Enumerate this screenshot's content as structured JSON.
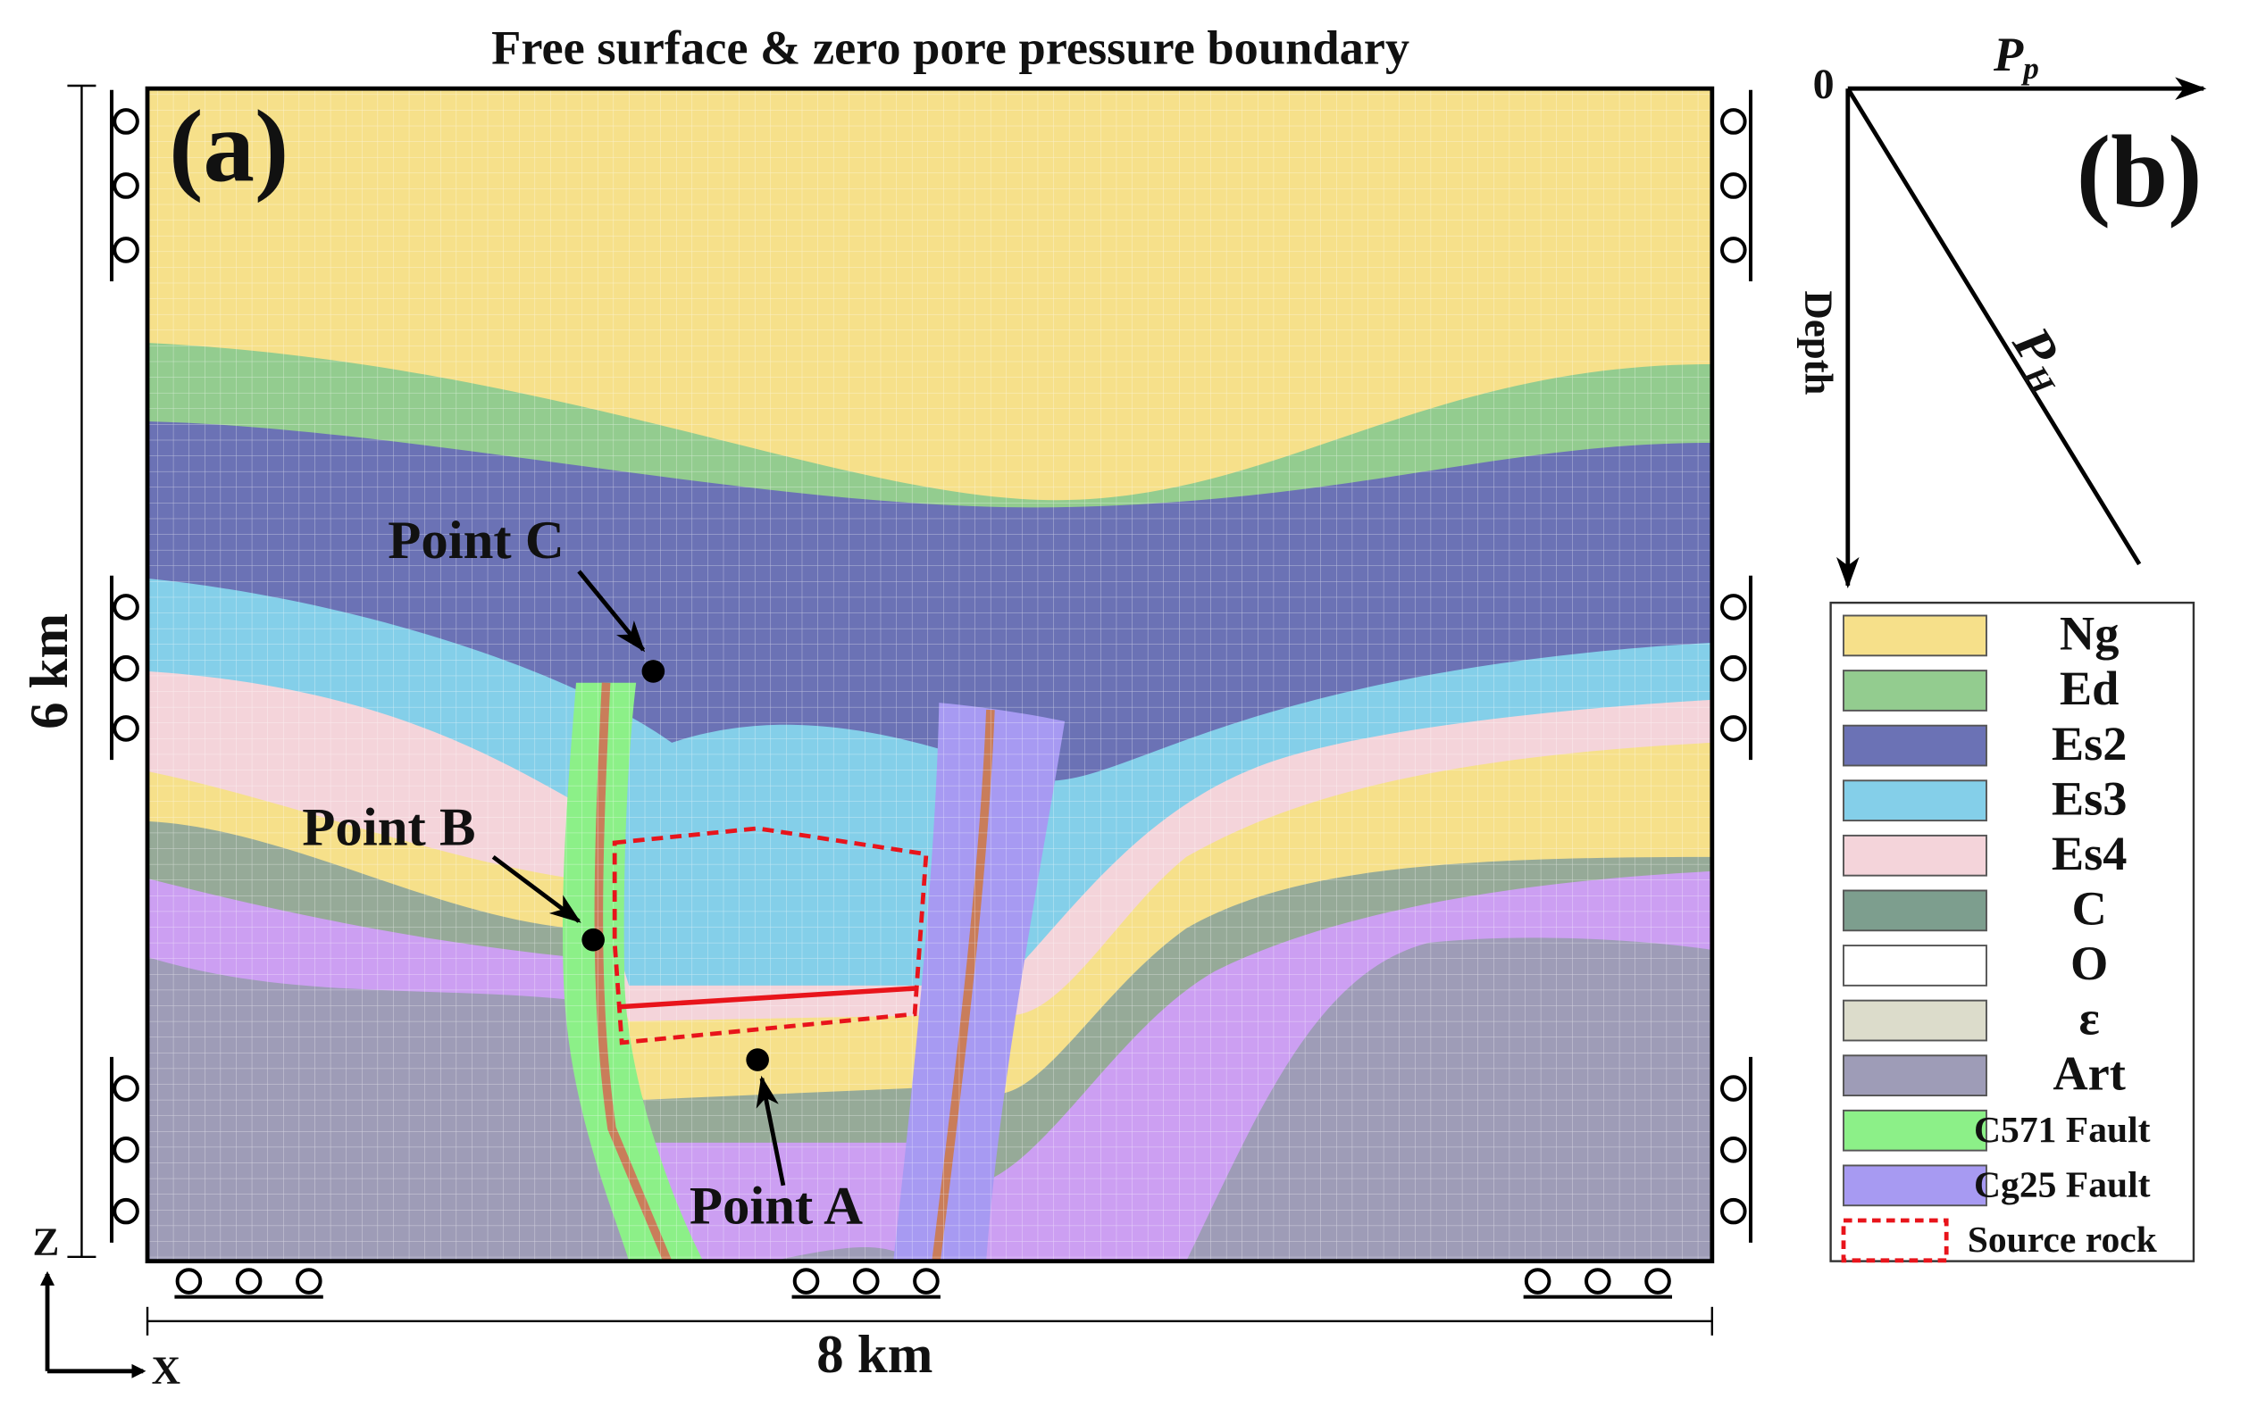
{
  "title": "Free surface & zero pore pressure boundary",
  "panel_a": {
    "label": "(a)",
    "height_label": "6 km",
    "width_label": "8 km",
    "axis_z": "Z",
    "axis_x": "X",
    "points": [
      "Point A",
      "Point B",
      "Point C"
    ]
  },
  "panel_b": {
    "label": "(b)",
    "origin": "0",
    "pp": {
      "symbol": "P",
      "subscript": "p"
    },
    "ph": {
      "symbol": "P",
      "subscript": "H"
    },
    "depth": "Depth"
  },
  "legend": [
    {
      "label": "Ng",
      "color": "#f6e08a"
    },
    {
      "label": "Ed",
      "color": "#93cc8f"
    },
    {
      "label": "Es2",
      "color": "#6b72b5"
    },
    {
      "label": "Es3",
      "color": "#84cfe9"
    },
    {
      "label": "Es4",
      "color": "#f4d4da"
    },
    {
      "label": "C",
      "color": "#7d9e8e"
    },
    {
      "label": "O",
      "color": "#ffffff"
    },
    {
      "label": "ε",
      "color": "#dcdccb"
    },
    {
      "label": "Art",
      "color": "#9e9cb7"
    },
    {
      "label": "C571 Fault",
      "color": "#8cf088"
    },
    {
      "label": "Cg25 Fault",
      "color": "#a79af2"
    },
    {
      "label": "Source rock",
      "color": "#e8141b",
      "style": "dashed"
    }
  ]
}
